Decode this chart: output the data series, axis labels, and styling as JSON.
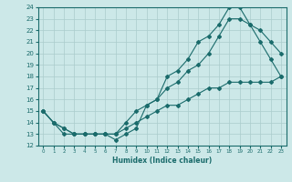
{
  "xlabel": "Humidex (Indice chaleur)",
  "ylabel": "",
  "bg_color": "#cce8e8",
  "grid_color": "#aacccc",
  "line_color": "#1a6b6b",
  "xmin": 0,
  "xmax": 23,
  "ymin": 12,
  "ymax": 24,
  "line1_x": [
    0,
    1,
    2,
    3,
    4,
    5,
    6,
    7,
    8,
    9,
    10,
    11,
    12,
    13,
    14,
    15,
    16,
    17,
    18,
    19,
    20,
    21,
    22,
    23
  ],
  "line1_y": [
    15,
    14,
    13,
    13,
    13,
    13,
    13,
    12.5,
    13,
    13.5,
    15.5,
    16,
    18,
    18.5,
    19.5,
    21,
    21.5,
    22.5,
    24,
    24,
    22.5,
    21,
    19.5,
    18
  ],
  "line2_x": [
    0,
    1,
    2,
    3,
    4,
    5,
    6,
    7,
    8,
    9,
    10,
    11,
    12,
    13,
    14,
    15,
    16,
    17,
    18,
    19,
    20,
    21,
    22,
    23
  ],
  "line2_y": [
    15,
    14,
    13.5,
    13,
    13,
    13,
    13,
    13,
    14,
    15,
    15.5,
    16,
    17,
    17.5,
    18.5,
    19,
    20,
    21.5,
    23,
    23,
    22.5,
    22,
    21,
    20
  ],
  "line3_x": [
    0,
    1,
    2,
    3,
    4,
    5,
    6,
    7,
    8,
    9,
    10,
    11,
    12,
    13,
    14,
    15,
    16,
    17,
    18,
    19,
    20,
    21,
    22,
    23
  ],
  "line3_y": [
    15,
    14,
    13.5,
    13,
    13,
    13,
    13,
    13,
    13.5,
    14,
    14.5,
    15,
    15.5,
    15.5,
    16,
    16.5,
    17,
    17,
    17.5,
    17.5,
    17.5,
    17.5,
    17.5,
    18
  ],
  "figwidth": 3.2,
  "figheight": 2.0,
  "dpi": 100
}
